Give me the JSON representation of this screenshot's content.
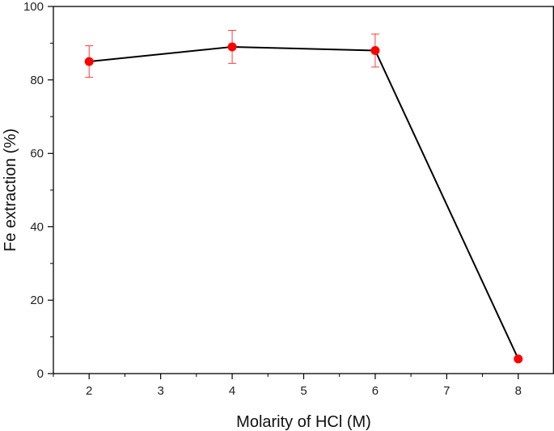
{
  "chart_data": {
    "type": "line",
    "xlabel": "Molarity of HCl (M)",
    "ylabel": "Fe extraction (%)",
    "xlim": [
      1.5,
      8.5
    ],
    "ylim": [
      0,
      100
    ],
    "x_ticks": [
      2,
      3,
      4,
      5,
      6,
      7,
      8
    ],
    "y_ticks": [
      0,
      20,
      40,
      60,
      80,
      100
    ],
    "grid": false,
    "series": [
      {
        "x": [
          2,
          4,
          6,
          8
        ],
        "y": [
          85,
          89,
          88,
          4
        ],
        "error": [
          4.3,
          4.5,
          4.5,
          0
        ],
        "line_color": "#000000",
        "marker_color": "#ff0000",
        "error_color": "#ff3b3b"
      }
    ]
  }
}
